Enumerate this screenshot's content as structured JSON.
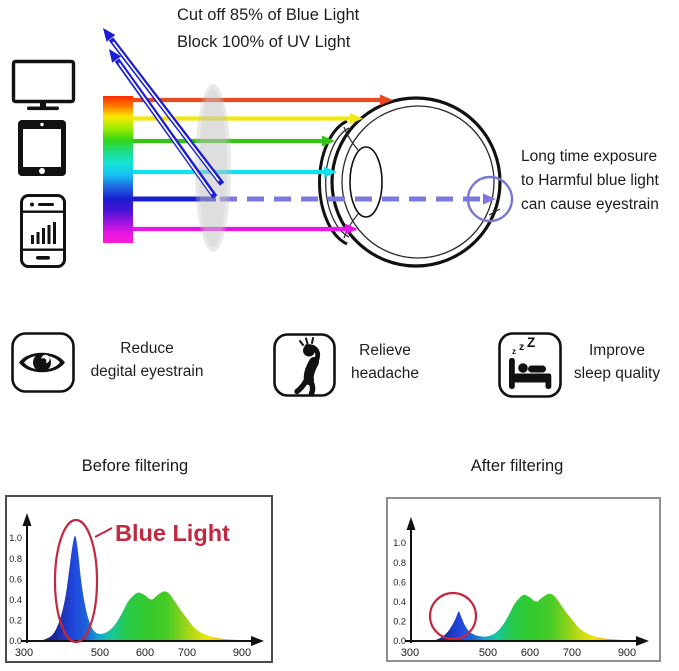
{
  "header": {
    "line1": "Cut off 85% of Blue Light",
    "line2": "Block 100% of UV Light"
  },
  "eye_caption": {
    "lines": [
      "Long time exposure",
      "to Harmful blue light",
      "can cause eyestrain"
    ]
  },
  "benefits": [
    {
      "icon": "eye-icon",
      "label_line1": "Reduce",
      "label_line2": "degital eyestrain"
    },
    {
      "icon": "headache-icon",
      "label_line1": "Relieve",
      "label_line2": "headache"
    },
    {
      "icon": "sleep-icon",
      "label_line1": "Improve",
      "label_line2": "sleep quality",
      "zzz": [
        "z",
        "z",
        "Z"
      ]
    }
  ],
  "charts": [
    {
      "title": "Before filtering",
      "annotation": "Blue Light"
    },
    {
      "title": "After filtering"
    }
  ],
  "colors": {
    "annotation_red": "#c22840",
    "ray_red": "#e84b1e",
    "ray_yellow": "#f2e713",
    "ray_green": "#35c415",
    "ray_cyan": "#12dff0",
    "ray_blue": "#1a20c8",
    "ray_dashed_violet": "#7b79e0",
    "ray_magenta": "#e816e8",
    "reflected_blue": "#1b1fd0",
    "retina_circle_blue": "#7878d2"
  },
  "chart_data": [
    {
      "type": "area",
      "title": "Before filtering",
      "x_ticks": [
        300,
        500,
        600,
        700,
        900
      ],
      "y_ticks": [
        "1.0",
        "0.8",
        "0.6",
        "0.4",
        "0.2",
        "0.0"
      ],
      "ylim": [
        0,
        1.1
      ],
      "annotation": {
        "label": "Blue Light",
        "highlight_circle_nm": 430
      },
      "series": [
        {
          "name": "spectral power before filtering",
          "points": [
            [
              342,
              0
            ],
            [
              358,
              0.02
            ],
            [
              372,
              0.05
            ],
            [
              385,
              0.12
            ],
            [
              398,
              0.25
            ],
            [
              410,
              0.45
            ],
            [
              420,
              0.72
            ],
            [
              428,
              0.93
            ],
            [
              435,
              1.02
            ],
            [
              442,
              0.87
            ],
            [
              450,
              0.6
            ],
            [
              460,
              0.36
            ],
            [
              470,
              0.21
            ],
            [
              480,
              0.12
            ],
            [
              492,
              0.075
            ],
            [
              505,
              0.07
            ],
            [
              520,
              0.1
            ],
            [
              535,
              0.17
            ],
            [
              550,
              0.28
            ],
            [
              562,
              0.38
            ],
            [
              575,
              0.445
            ],
            [
              585,
              0.47
            ],
            [
              598,
              0.45
            ],
            [
              610,
              0.41
            ],
            [
              618,
              0.405
            ],
            [
              628,
              0.44
            ],
            [
              640,
              0.475
            ],
            [
              650,
              0.48
            ],
            [
              660,
              0.45
            ],
            [
              672,
              0.38
            ],
            [
              685,
              0.3
            ],
            [
              700,
              0.22
            ],
            [
              718,
              0.155
            ],
            [
              738,
              0.105
            ],
            [
              760,
              0.07
            ],
            [
              785,
              0.045
            ],
            [
              815,
              0.028
            ],
            [
              850,
              0.016
            ],
            [
              890,
              0.009
            ],
            [
              930,
              0.004
            ],
            [
              950,
              0.001
            ]
          ]
        }
      ]
    },
    {
      "type": "area",
      "title": "After filtering",
      "x_ticks": [
        300,
        500,
        600,
        700,
        900
      ],
      "y_ticks": [
        "1.0",
        "0.8",
        "0.6",
        "0.4",
        "0.2",
        "0.0"
      ],
      "ylim": [
        0,
        1.1
      ],
      "annotation": {
        "label": "",
        "highlight_circle_nm": 415
      },
      "series": [
        {
          "name": "spectral power after filtering",
          "points": [
            [
              358,
              0
            ],
            [
              372,
              0.02
            ],
            [
              385,
              0.05
            ],
            [
              398,
              0.1
            ],
            [
              408,
              0.16
            ],
            [
              417,
              0.23
            ],
            [
              425,
              0.3
            ],
            [
              432,
              0.24
            ],
            [
              440,
              0.165
            ],
            [
              450,
              0.105
            ],
            [
              462,
              0.07
            ],
            [
              475,
              0.052
            ],
            [
              490,
              0.045
            ],
            [
              505,
              0.055
            ],
            [
              520,
              0.09
            ],
            [
              535,
              0.16
            ],
            [
              550,
              0.27
            ],
            [
              562,
              0.37
            ],
            [
              575,
              0.44
            ],
            [
              585,
              0.47
            ],
            [
              598,
              0.45
            ],
            [
              610,
              0.41
            ],
            [
              618,
              0.405
            ],
            [
              628,
              0.44
            ],
            [
              640,
              0.475
            ],
            [
              650,
              0.48
            ],
            [
              660,
              0.45
            ],
            [
              672,
              0.38
            ],
            [
              685,
              0.3
            ],
            [
              700,
              0.22
            ],
            [
              718,
              0.155
            ],
            [
              738,
              0.105
            ],
            [
              760,
              0.07
            ],
            [
              785,
              0.045
            ],
            [
              815,
              0.028
            ],
            [
              850,
              0.016
            ],
            [
              890,
              0.009
            ],
            [
              930,
              0.004
            ],
            [
              950,
              0.001
            ]
          ]
        }
      ]
    }
  ]
}
